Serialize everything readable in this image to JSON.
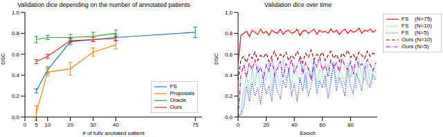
{
  "chart_data": [
    {
      "type": "line",
      "title": "Validation dice depending on the number of annotated patients",
      "x_label": "# of fully anotated patient",
      "y_label": "DSC",
      "x": [
        5,
        10,
        20,
        30,
        40,
        75
      ],
      "xlim": [
        0,
        78
      ],
      "xticks": [
        0,
        5,
        10,
        20,
        30,
        40,
        75
      ],
      "ylim": [
        0,
        1
      ],
      "yticks": [
        {
          "value": 0,
          "label": "0.0"
        },
        {
          "value": 0.2,
          "label": "0.2"
        },
        {
          "value": 0.4,
          "label": "0.4"
        },
        {
          "value": 0.6,
          "label": "0.6"
        },
        {
          "value": 0.8,
          "label": "0.8"
        },
        {
          "value": 1,
          "label": "1.0"
        }
      ],
      "grid": false,
      "legend": "lower right",
      "series": [
        {
          "name": "FS",
          "color": "#1f77b4",
          "line_style": "solid",
          "values": [
            0.25,
            0.45,
            0.72,
            null,
            0.76,
            0.81
          ],
          "errors": [
            0.02,
            0.03,
            0.03,
            null,
            0.03,
            0.05
          ]
        },
        {
          "name": "Proposals",
          "color": "#ff7f0e",
          "line_style": "solid",
          "values": [
            0.04,
            0.43,
            0.46,
            0.62,
            0.69,
            null
          ],
          "errors": [
            0.07,
            0.03,
            0.06,
            0.04,
            0.04,
            null
          ]
        },
        {
          "name": "Oracle",
          "color": "#2ca02c",
          "line_style": "solid",
          "values": [
            0.74,
            0.76,
            0.76,
            0.77,
            0.8,
            null
          ],
          "errors": [
            0.03,
            0.02,
            0.03,
            0.04,
            0.03,
            null
          ]
        },
        {
          "name": "Ours",
          "color": "#d62728",
          "line_style": "solid",
          "values": [
            0.53,
            0.58,
            0.73,
            0.74,
            0.75,
            null
          ],
          "errors": [
            0.02,
            0.02,
            0.02,
            0.02,
            0.02,
            null
          ]
        }
      ]
    },
    {
      "type": "line",
      "title": "Validation dice over time",
      "x_label": "Epoch",
      "y_label": "DSC",
      "x": [
        0,
        2,
        4,
        6,
        8,
        10,
        12,
        14,
        16,
        18,
        20,
        22,
        24,
        26,
        28,
        30,
        32,
        34,
        36,
        38,
        40,
        42,
        44,
        46,
        48,
        50,
        52,
        54,
        56,
        58,
        60,
        62,
        64,
        66,
        68,
        70,
        72,
        74,
        76,
        78,
        80,
        82,
        84,
        86,
        88,
        90,
        92,
        94,
        96,
        98
      ],
      "xlim": [
        0,
        99
      ],
      "xticks": [
        0,
        20,
        40,
        60,
        80
      ],
      "ylim": [
        0,
        1
      ],
      "yticks": [
        {
          "value": 0,
          "label": "0.0"
        },
        {
          "value": 0.2,
          "label": "0.2"
        },
        {
          "value": 0.4,
          "label": "0.4"
        },
        {
          "value": 0.6,
          "label": "0.6"
        },
        {
          "value": 0.8,
          "label": "0.8"
        },
        {
          "value": 1,
          "label": "1.0"
        }
      ],
      "grid": false,
      "legend": "right",
      "series": [
        {
          "name": "FS    (N=75)",
          "color": "#ff0000",
          "line_style": "solid",
          "values": [
            0.52,
            0.78,
            0.8,
            0.82,
            0.77,
            0.83,
            0.81,
            0.79,
            0.84,
            0.8,
            0.82,
            0.78,
            0.83,
            0.81,
            0.8,
            0.84,
            0.79,
            0.82,
            0.83,
            0.8,
            0.81,
            0.84,
            0.78,
            0.82,
            0.83,
            0.8,
            0.82,
            0.84,
            0.79,
            0.83,
            0.81,
            0.82,
            0.8,
            0.84,
            0.81,
            0.83,
            0.79,
            0.82,
            0.84,
            0.8,
            0.83,
            0.81,
            0.82,
            0.85,
            0.8,
            0.83,
            0.82,
            0.84,
            0.81,
            0.83
          ]
        },
        {
          "name": "FS    (N=10)",
          "color": "#00bfbf",
          "line_style": "dotted",
          "values": [
            0.0,
            0.05,
            0.25,
            0.4,
            0.22,
            0.45,
            0.3,
            0.5,
            0.28,
            0.42,
            0.35,
            0.52,
            0.25,
            0.48,
            0.38,
            0.3,
            0.55,
            0.35,
            0.45,
            0.28,
            0.5,
            0.4,
            0.33,
            0.52,
            0.27,
            0.47,
            0.38,
            0.55,
            0.3,
            0.45,
            0.42,
            0.28,
            0.5,
            0.36,
            0.53,
            0.32,
            0.46,
            0.4,
            0.3,
            0.52,
            0.38,
            0.48,
            0.27,
            0.55,
            0.4,
            0.35,
            0.5,
            0.3,
            0.47,
            0.42
          ]
        },
        {
          "name": "FS    (N=5)",
          "color": "#0000ff",
          "line_style": "dotted",
          "values": [
            0.0,
            0.02,
            0.1,
            0.3,
            0.15,
            0.33,
            0.2,
            0.28,
            0.12,
            0.35,
            0.22,
            0.3,
            0.15,
            0.4,
            0.25,
            0.18,
            0.35,
            0.28,
            0.45,
            0.2,
            0.32,
            0.15,
            0.38,
            0.25,
            0.42,
            0.2,
            0.3,
            0.48,
            0.22,
            0.35,
            0.28,
            0.4,
            0.18,
            0.33,
            0.5,
            0.25,
            0.38,
            0.3,
            0.2,
            0.45,
            0.3,
            0.22,
            0.42,
            0.35,
            0.25,
            0.47,
            0.32,
            0.28,
            0.4,
            0.35
          ]
        },
        {
          "name": "Ours (N=10)",
          "color": "#8b0000",
          "line_style": "dashed",
          "values": [
            0.35,
            0.55,
            0.58,
            0.52,
            0.6,
            0.56,
            0.62,
            0.54,
            0.59,
            0.57,
            0.61,
            0.53,
            0.58,
            0.63,
            0.55,
            0.6,
            0.57,
            0.62,
            0.54,
            0.59,
            0.56,
            0.63,
            0.58,
            0.52,
            0.61,
            0.57,
            0.64,
            0.55,
            0.6,
            0.58,
            0.62,
            0.54,
            0.59,
            0.63,
            0.56,
            0.6,
            0.53,
            0.61,
            0.58,
            0.64,
            0.57,
            0.6,
            0.55,
            0.62,
            0.59,
            0.56,
            0.63,
            0.58,
            0.61,
            0.6
          ]
        },
        {
          "name": "Ours (N=5)",
          "color": "#bf00bf",
          "line_style": "dashdot",
          "values": [
            0.0,
            0.4,
            0.5,
            0.38,
            0.52,
            0.45,
            0.55,
            0.42,
            0.48,
            0.36,
            0.5,
            0.44,
            0.56,
            0.4,
            0.47,
            0.53,
            0.38,
            0.51,
            0.45,
            0.55,
            0.42,
            0.49,
            0.57,
            0.41,
            0.52,
            0.46,
            0.35,
            0.54,
            0.48,
            0.58,
            0.44,
            0.5,
            0.39,
            0.55,
            0.47,
            0.52,
            0.43,
            0.56,
            0.49,
            0.45,
            0.53,
            0.41,
            0.57,
            0.48,
            0.51,
            0.46,
            0.55,
            0.5,
            0.44,
            0.52
          ]
        }
      ]
    }
  ]
}
